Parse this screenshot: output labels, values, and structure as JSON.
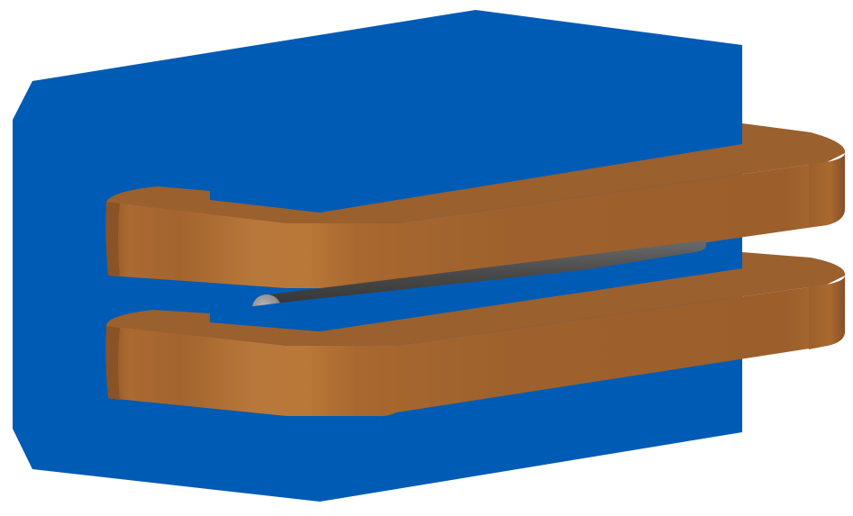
{
  "colors": {
    "background": "#ffffff",
    "yoke_blue": "#005bb4",
    "copper_light": "#ba7838",
    "copper_mid": "#a1632d",
    "copper_dark": "#7e4c23",
    "copper_top": "#9a602e",
    "rod_light": "#a6a6a6",
    "rod_dark": "#3a3a3a"
  },
  "parts": [
    {
      "name": "magnet-yoke",
      "color": "yoke_blue"
    },
    {
      "name": "upper-coil",
      "color": "copper"
    },
    {
      "name": "lower-coil",
      "color": "copper"
    },
    {
      "name": "beam-pipe-rod",
      "color": "gray"
    }
  ]
}
